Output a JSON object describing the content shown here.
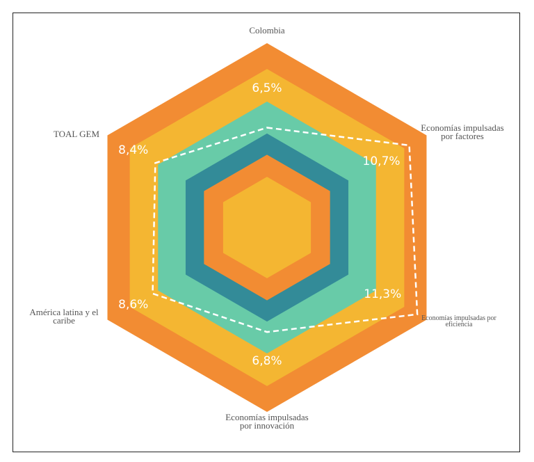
{
  "chart_data": {
    "type": "radar",
    "categories": [
      "Colombia",
      "Economías impulsadas por factores",
      "Economías impulsadas por eficiencia",
      "Economías impulsadas por innovación",
      "América latina y el caribe",
      "TOAL GEM"
    ],
    "values": [
      6.5,
      10.7,
      11.3,
      6.8,
      8.6,
      8.4
    ],
    "value_labels": [
      "6,5%",
      "10,7%",
      "11,3%",
      "6,8%",
      "8,6%",
      "8,4%"
    ],
    "rlim": [
      0,
      12
    ],
    "color": "#ffffff"
  }
}
